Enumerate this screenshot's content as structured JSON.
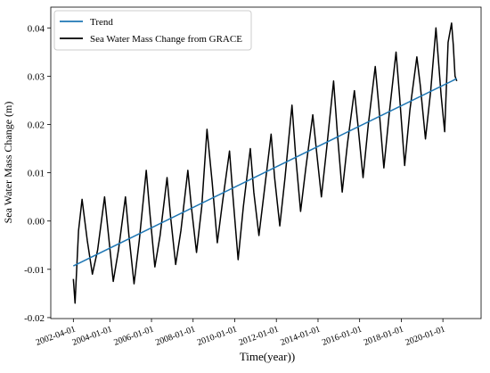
{
  "chart_data": {
    "type": "line",
    "xlabel": "Time(year))",
    "ylabel": "Sea Water Mass Change (m)",
    "xlim": [
      "2001-03-01",
      "2021-11-01"
    ],
    "ylim": [
      -0.0202,
      0.0443
    ],
    "xticks": [
      "2002-04-01",
      "2004-01-01",
      "2006-01-01",
      "2008-01-01",
      "2010-01-01",
      "2012-01-01",
      "2014-01-01",
      "2016-01-01",
      "2018-01-01",
      "2020-01-01"
    ],
    "yticks": [
      -0.02,
      -0.01,
      {
        "value": 0,
        "label": "0.00"
      },
      0.01,
      0.02,
      0.03,
      0.04
    ],
    "legend": "upper left",
    "series": [
      {
        "name": "Trend",
        "color": "#1f77b4",
        "x": [
          "2002-04-01",
          "2020-09-01"
        ],
        "values": [
          -0.0093,
          0.0295
        ]
      },
      {
        "name": "Sea Water Mass Change from GRACE",
        "color": "#000000",
        "x": [
          "2002-04-01",
          "2002-05-01",
          "2002-07-01",
          "2002-09-01",
          "2002-12-01",
          "2003-03-01",
          "2003-06-01",
          "2003-10-01",
          "2003-12-01",
          "2004-03-01",
          "2004-06-01",
          "2004-10-01",
          "2004-12-01",
          "2005-03-01",
          "2005-06-01",
          "2005-10-01",
          "2005-12-01",
          "2006-03-01",
          "2006-06-01",
          "2006-10-01",
          "2006-12-01",
          "2007-03-01",
          "2007-06-01",
          "2007-10-01",
          "2007-12-01",
          "2008-03-01",
          "2008-06-01",
          "2008-09-01",
          "2008-12-01",
          "2009-03-01",
          "2009-06-01",
          "2009-10-01",
          "2009-12-01",
          "2010-03-01",
          "2010-06-01",
          "2010-10-01",
          "2010-12-01",
          "2011-03-01",
          "2011-06-01",
          "2011-10-01",
          "2011-12-01",
          "2012-03-01",
          "2012-06-01",
          "2012-10-01",
          "2012-12-01",
          "2013-03-01",
          "2013-06-01",
          "2013-10-01",
          "2013-12-01",
          "2014-03-01",
          "2014-06-01",
          "2014-10-01",
          "2014-12-01",
          "2015-03-01",
          "2015-06-01",
          "2015-10-01",
          "2015-12-01",
          "2016-03-01",
          "2016-06-01",
          "2016-10-01",
          "2016-12-01",
          "2017-03-01",
          "2017-06-01",
          "2017-10-01",
          "2017-12-01",
          "2018-03-01",
          "2018-06-01",
          "2018-10-01",
          "2018-12-01",
          "2019-03-01",
          "2019-06-01",
          "2019-09-01",
          "2019-12-01",
          "2020-02-01",
          "2020-04-01",
          "2020-06-01",
          "2020-07-01",
          "2020-08-01",
          "2020-09-01"
        ],
        "values": [
          -0.012,
          -0.017,
          -0.002,
          0.0045,
          -0.004,
          -0.011,
          -0.006,
          0.005,
          -0.002,
          -0.0125,
          -0.006,
          0.005,
          -0.003,
          -0.013,
          -0.004,
          0.0105,
          0.002,
          -0.0095,
          -0.003,
          0.009,
          0.001,
          -0.009,
          -0.002,
          0.0105,
          0.003,
          -0.0065,
          0.003,
          0.019,
          0.008,
          -0.0045,
          0.004,
          0.0145,
          0.005,
          -0.008,
          0.003,
          0.015,
          0.006,
          -0.003,
          0.006,
          0.018,
          0.009,
          -0.001,
          0.009,
          0.024,
          0.014,
          0.002,
          0.011,
          0.022,
          0.015,
          0.005,
          0.015,
          0.029,
          0.019,
          0.006,
          0.016,
          0.027,
          0.02,
          0.009,
          0.02,
          0.032,
          0.024,
          0.011,
          0.022,
          0.035,
          0.026,
          0.0115,
          0.023,
          0.034,
          0.028,
          0.017,
          0.027,
          0.04,
          0.026,
          0.0185,
          0.037,
          0.041,
          0.0365,
          0.03,
          0.029
        ]
      }
    ]
  }
}
